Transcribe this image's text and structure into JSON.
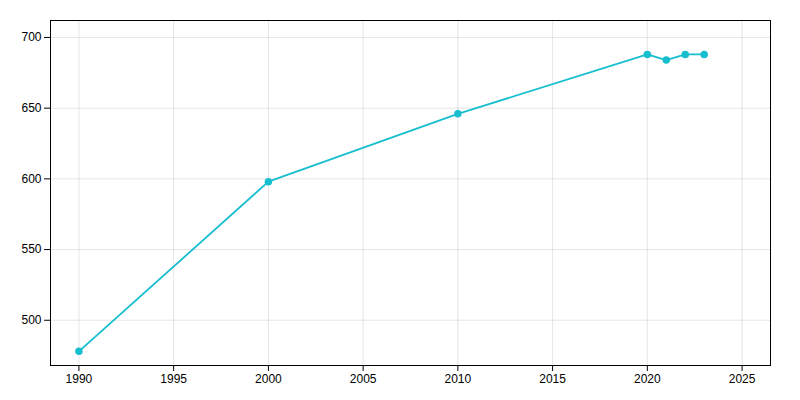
{
  "chart_data": {
    "type": "line",
    "x": [
      1990,
      2000,
      2010,
      2020,
      2021,
      2022,
      2023
    ],
    "values": [
      478,
      598,
      646,
      688,
      684,
      688,
      688
    ],
    "color": "#17becf",
    "marker": "circle",
    "xlim": [
      1988.5,
      2026.5
    ],
    "ylim": [
      468,
      712
    ],
    "xticks": [
      1990,
      1995,
      2000,
      2005,
      2010,
      2015,
      2020,
      2025
    ],
    "yticks": [
      500,
      550,
      600,
      650,
      700
    ],
    "grid": true
  }
}
